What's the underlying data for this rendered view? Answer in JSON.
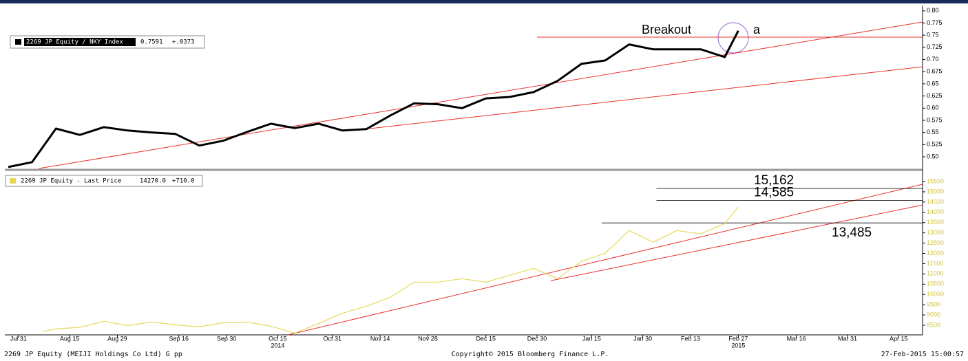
{
  "chart_data": [
    {
      "type": "line",
      "x": [
        "2014-07-28",
        "2014-08-04",
        "2014-08-11",
        "2014-08-18",
        "2014-08-25",
        "2014-09-01",
        "2014-09-08",
        "2014-09-15",
        "2014-09-22",
        "2014-09-29",
        "2014-10-06",
        "2014-10-13",
        "2014-10-20",
        "2014-10-27",
        "2014-11-03",
        "2014-11-10",
        "2014-11-17",
        "2014-11-24",
        "2014-12-01",
        "2014-12-08",
        "2014-12-15",
        "2014-12-22",
        "2014-12-29",
        "2015-01-05",
        "2015-01-12",
        "2015-01-19",
        "2015-01-26",
        "2015-02-02",
        "2015-02-09",
        "2015-02-16",
        "2015-02-23",
        "2015-02-27"
      ],
      "series": [
        {
          "name": "2269 JP Equity / NKY Index",
          "last_label": "0.7591",
          "change_label": "+.0373",
          "color": "#000000",
          "values": [
            0.479,
            0.489,
            0.558,
            0.545,
            0.561,
            0.554,
            0.55,
            0.547,
            0.523,
            0.533,
            0.551,
            0.568,
            0.559,
            0.568,
            0.554,
            0.557,
            0.585,
            0.61,
            0.608,
            0.6,
            0.62,
            0.623,
            0.633,
            0.656,
            0.691,
            0.698,
            0.731,
            0.721,
            0.721,
            0.721,
            0.705,
            0.7591
          ]
        }
      ],
      "xlim": [
        "2014-07-27",
        "2015-04-22"
      ],
      "ylim": [
        0.476,
        0.811
      ],
      "yticks": [
        {
          "value": 0.8,
          "label": "0.80"
        },
        0.775,
        0.75,
        0.725,
        {
          "value": 0.7,
          "label": "0.70"
        },
        0.675,
        0.65,
        0.625,
        {
          "value": 0.6,
          "label": "0.60"
        },
        0.575,
        0.55,
        0.525,
        {
          "value": 0.5,
          "label": "0.50"
        }
      ],
      "tick_color": "#000000",
      "trendlines": [
        {
          "from_date": "2014-08-06",
          "from": 0.476,
          "to_date": "2015-04-22",
          "to": 0.777
        },
        {
          "from_date": "2014-11-11",
          "from": 0.558,
          "to_date": "2015-04-22",
          "to": 0.685
        },
        {
          "from_date": "2014-12-30",
          "from": 0.746,
          "to_date": "2015-04-22",
          "to": 0.746
        }
      ],
      "annotations": [
        "Breakout",
        "a"
      ]
    },
    {
      "type": "line",
      "x": [
        "2014-08-07",
        "2014-08-11",
        "2014-08-18",
        "2014-08-25",
        "2014-09-01",
        "2014-09-08",
        "2014-09-15",
        "2014-09-22",
        "2014-09-29",
        "2014-10-06",
        "2014-10-13",
        "2014-10-20",
        "2014-10-27",
        "2014-11-03",
        "2014-11-10",
        "2014-11-17",
        "2014-11-24",
        "2014-12-01",
        "2014-12-08",
        "2014-12-15",
        "2014-12-22",
        "2014-12-29",
        "2015-01-05",
        "2015-01-12",
        "2015-01-19",
        "2015-01-26",
        "2015-02-02",
        "2015-02-09",
        "2015-02-16",
        "2015-02-23",
        "2015-02-27"
      ],
      "series": [
        {
          "name": "2269 JP Equity - Last Price",
          "last_label": "14270.0",
          "change_label": "+710.0",
          "color": "#e6d95a",
          "values": [
            8190,
            8318,
            8400,
            8690,
            8486,
            8654,
            8520,
            8419,
            8620,
            8654,
            8453,
            8117,
            8587,
            9090,
            9426,
            9862,
            10600,
            10600,
            10768,
            10600,
            10936,
            11271,
            10768,
            11607,
            12010,
            13117,
            12547,
            13117,
            12950,
            13453,
            14270
          ]
        }
      ],
      "xlim": [
        "2014-07-27",
        "2015-04-22"
      ],
      "ylim": [
        8030,
        15970
      ],
      "yticks": [
        15500,
        15000,
        14500,
        14000,
        13500,
        13000,
        12500,
        12000,
        11500,
        11000,
        10500,
        10000,
        9500,
        9000,
        8500
      ],
      "tick_color": "#d4c440",
      "xticks": [
        {
          "value": "2014-07-31",
          "label": "Jul 31"
        },
        {
          "value": "2014-08-15",
          "label": "Aug 15"
        },
        {
          "value": "2014-08-29",
          "label": "Aug 29"
        },
        {
          "value": "2014-09-16",
          "label": "Sep 16"
        },
        {
          "value": "2014-09-30",
          "label": "Sep 30"
        },
        {
          "value": "2014-10-15",
          "label": "Oct 15"
        },
        {
          "value": "2014-10-31",
          "label": "Oct 31"
        },
        {
          "value": "2014-11-14",
          "label": "Nov 14"
        },
        {
          "value": "2014-11-28",
          "label": "Nov 28"
        },
        {
          "value": "2014-12-15",
          "label": "Dec 15"
        },
        {
          "value": "2014-12-30",
          "label": "Dec 30"
        },
        {
          "value": "2015-01-15",
          "label": "Jan 15"
        },
        {
          "value": "2015-01-30",
          "label": "Jan 30"
        },
        {
          "value": "2015-02-13",
          "label": "Feb 13"
        },
        {
          "value": "2015-02-27",
          "label": "Feb 27"
        },
        {
          "value": "2015-03-16",
          "label": "Mar 16"
        },
        {
          "value": "2015-03-31",
          "label": "Mar 31"
        },
        {
          "value": "2015-04-15",
          "label": "Apr 15"
        }
      ],
      "year_labels": [
        {
          "value": "2014-10-15",
          "label": "2014"
        },
        {
          "value": "2015-02-27",
          "label": "2015"
        }
      ],
      "trendlines": [
        {
          "from_date": "2014-10-18",
          "from": 8030,
          "to_date": "2015-04-22",
          "to": 15366
        },
        {
          "from_date": "2015-01-03",
          "from": 10668,
          "to_date": "2015-04-22",
          "to": 14359
        }
      ],
      "levels": [
        {
          "value": 15162,
          "label": "15,162",
          "from": "2015-02-03"
        },
        {
          "value": 14585,
          "label": "14,585",
          "from": "2015-02-03"
        },
        {
          "value": 13485,
          "label": "13,485",
          "from": "2015-01-18"
        }
      ]
    }
  ],
  "footer": {
    "left": "2269 JP Equity (MEIJI Holdings Co Ltd) G pp",
    "center": "Copyright© 2015 Bloomberg Finance L.P.",
    "right": "27-Feb-2015 15:00:57"
  }
}
